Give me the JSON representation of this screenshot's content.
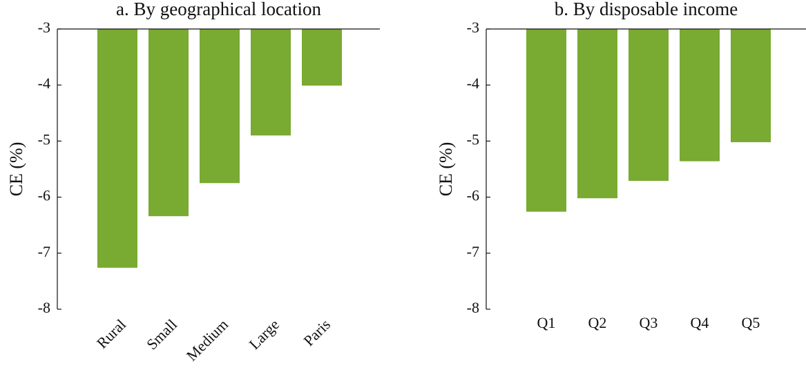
{
  "chart_data": [
    {
      "type": "bar",
      "title": "a. By geographical location",
      "ylabel": "CE (%)",
      "categories": [
        "Rural",
        "Small",
        "Medium",
        "Large",
        "Paris"
      ],
      "values": [
        -7.26,
        -6.34,
        -5.75,
        -4.9,
        -4.01
      ],
      "color": "#79aa31",
      "ylim": [
        -8,
        -3
      ],
      "yticks": [
        -8,
        -7,
        -6,
        -5,
        -4,
        -3
      ],
      "xtick_rotation": 45
    },
    {
      "type": "bar",
      "title": "b. By disposable income",
      "ylabel": "CE (%)",
      "categories": [
        "Q1",
        "Q2",
        "Q3",
        "Q4",
        "Q5"
      ],
      "values": [
        -6.26,
        -6.02,
        -5.71,
        -5.36,
        -5.02
      ],
      "color": "#79aa31",
      "ylim": [
        -8,
        -3
      ],
      "yticks": [
        -8,
        -7,
        -6,
        -5,
        -4,
        -3
      ]
    }
  ]
}
